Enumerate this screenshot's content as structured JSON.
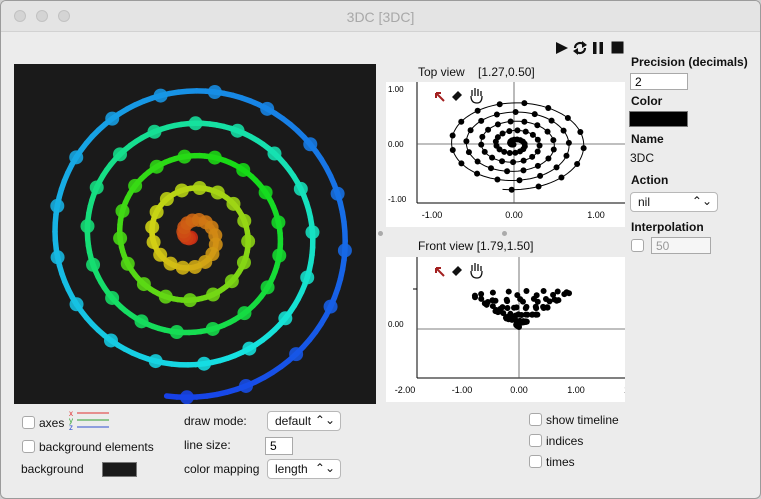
{
  "window": {
    "title": "3DC [3DC]"
  },
  "playback": {
    "play_icon": "play-icon",
    "loop_icon": "loop-icon",
    "pause_icon": "pause-icon",
    "stop_icon": "stop-icon"
  },
  "top_view": {
    "title": "Top view",
    "coords": "[1.27,0.50]",
    "x_ticks": [
      "-1.00",
      "0.00",
      "1.00"
    ],
    "y_ticks": [
      "1.00",
      "0.00",
      "-1.00"
    ]
  },
  "front_view": {
    "title": "Front view",
    "coords": "[1.79,1.50]",
    "x_ticks": [
      "-2.00",
      "-1.00",
      "0.00",
      "1.00",
      "2.00"
    ],
    "y_ticks": [
      "0.00"
    ]
  },
  "tools": {
    "pointer_icon": "pointer-arrow-icon",
    "eraser_icon": "eraser-icon",
    "hand_icon": "hand-pan-icon"
  },
  "right_panel": {
    "precision_label": "Precision (decimals)",
    "precision_value": "2",
    "color_label": "Color",
    "color_value": "#000000",
    "name_label": "Name",
    "name_value": "3DC",
    "action_label": "Action",
    "action_value": "nil",
    "interpolation_label": "Interpolation",
    "interpolation_value": "50"
  },
  "bottom": {
    "axes_label": "axes",
    "axes_legend": [
      "x",
      "y",
      "z"
    ],
    "axes_colors": [
      "#e03030",
      "#30a030",
      "#3050d0"
    ],
    "background_elements_label": "background elements",
    "background_label": "background",
    "background_color": "#1a1a1a",
    "draw_mode_label": "draw mode:",
    "draw_mode_value": "default",
    "line_size_label": "line size:",
    "line_size_value": "5",
    "color_mapping_label": "color mapping",
    "color_mapping_value": "length",
    "show_timeline_label": "show timeline",
    "indices_label": "indices",
    "times_label": "times"
  }
}
